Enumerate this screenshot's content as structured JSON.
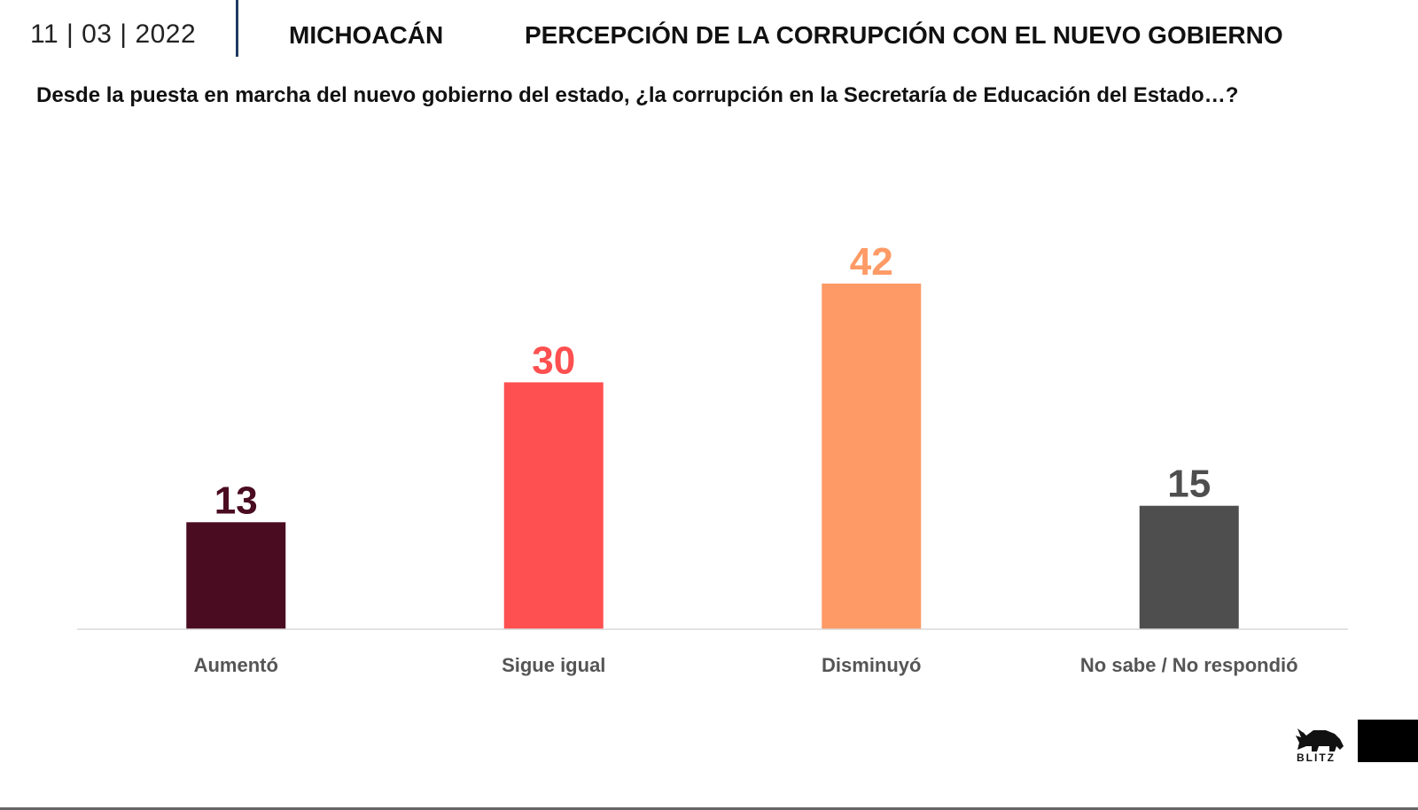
{
  "header": {
    "date": "11 | 03 | 2022",
    "region": "MICHOACÁN",
    "title": "PERCEPCIÓN DE LA CORRUPCIÓN CON EL NUEVO GOBIERNO"
  },
  "question": "Desde la puesta en marcha del nuevo gobierno del estado, ¿la corrupción en la Secretaría de Educación del Estado…?",
  "brand": {
    "name": "BLITZ",
    "icon": "rhino-icon"
  },
  "chart_data": {
    "type": "bar",
    "title": "",
    "xlabel": "",
    "ylabel": "",
    "ylim": [
      0,
      42
    ],
    "grid": false,
    "legend": "none",
    "categories": [
      "Aumentó",
      "Sigue igual",
      "Disminuyó",
      "No sabe / No respondió"
    ],
    "values": [
      13,
      30,
      42,
      15
    ],
    "colors": [
      "#4a0c20",
      "#fe5050",
      "#fe9a66",
      "#4e4e4e"
    ]
  }
}
